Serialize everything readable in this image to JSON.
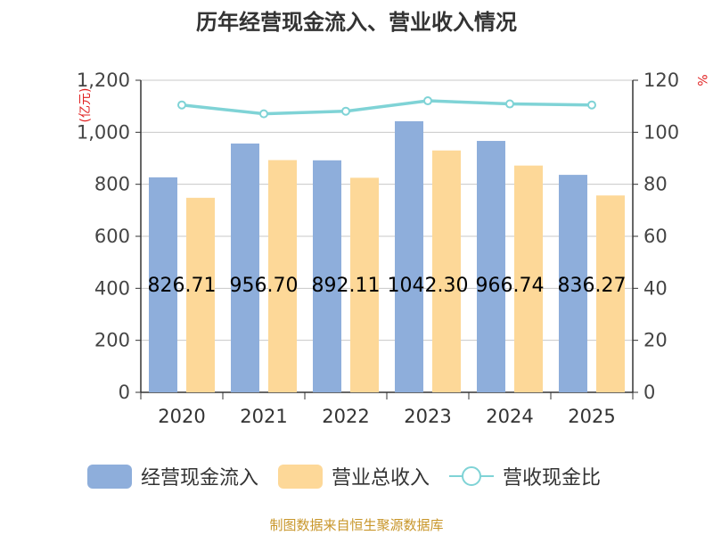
{
  "chart_data": {
    "type": "bar",
    "title": "历年经营现金流入、营业收入情况",
    "source": "制图数据来自恒生聚源数据库",
    "left_axis_unit": "(亿元)",
    "right_axis_unit": "%",
    "categories": [
      "2020",
      "2021",
      "2022",
      "2023",
      "2024",
      "2025"
    ],
    "left_ylim": [
      0,
      1200
    ],
    "left_ticks": [
      "0",
      "200",
      "400",
      "600",
      "800",
      "1,000",
      "1,200"
    ],
    "right_ylim": [
      0,
      120
    ],
    "right_ticks": [
      "0",
      "20",
      "40",
      "60",
      "80",
      "100",
      "120"
    ],
    "grid": true,
    "legend_position": "bottom",
    "series": [
      {
        "name": "经营现金流入",
        "kind": "bar",
        "axis": "left",
        "color": "#8eaedb",
        "values": [
          826.71,
          956.7,
          892.11,
          1042.3,
          966.74,
          836.27
        ]
      },
      {
        "name": "营业总收入",
        "kind": "bar",
        "axis": "left",
        "color": "#fdd898",
        "values": [
          748,
          893,
          825,
          930,
          872,
          757
        ]
      },
      {
        "name": "营收现金比",
        "kind": "line",
        "axis": "right",
        "color": "#7fd3d6",
        "values": [
          110.5,
          107.1,
          108.1,
          112.1,
          110.9,
          110.5
        ]
      }
    ],
    "data_labels": [
      "826.71",
      "956.70",
      "892.11",
      "1042.30",
      "966.74",
      "836.27"
    ]
  }
}
